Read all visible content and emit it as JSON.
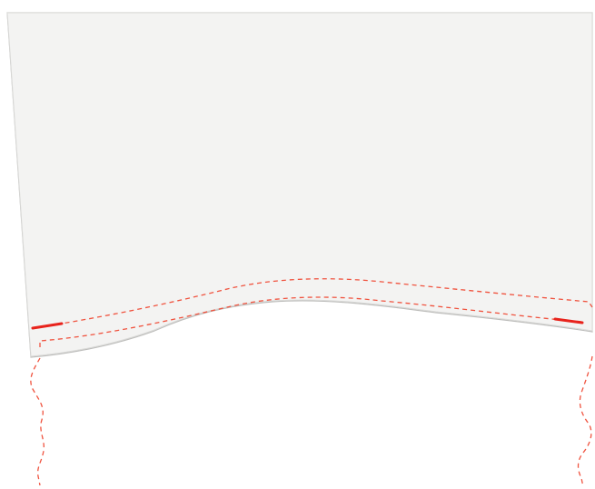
{
  "colors": {
    "background": "#ffffff",
    "panel_fill": "#f3f3f2",
    "panel_edge": "#d9d9d7",
    "panel_shadow": "#bdbdbb",
    "dashed_line": "#f0533f",
    "marker": "#e8231c"
  },
  "shapes": {
    "panel": "fabric-panel",
    "upper_guide": "upper-dashed-guide",
    "lower_guide": "lower-dashed-guide",
    "left_marker": "left-solid-marker",
    "right_marker": "right-solid-marker",
    "left_trailing": "left-trailing-dashed-curve",
    "right_trailing": "right-trailing-dashed-curve"
  }
}
